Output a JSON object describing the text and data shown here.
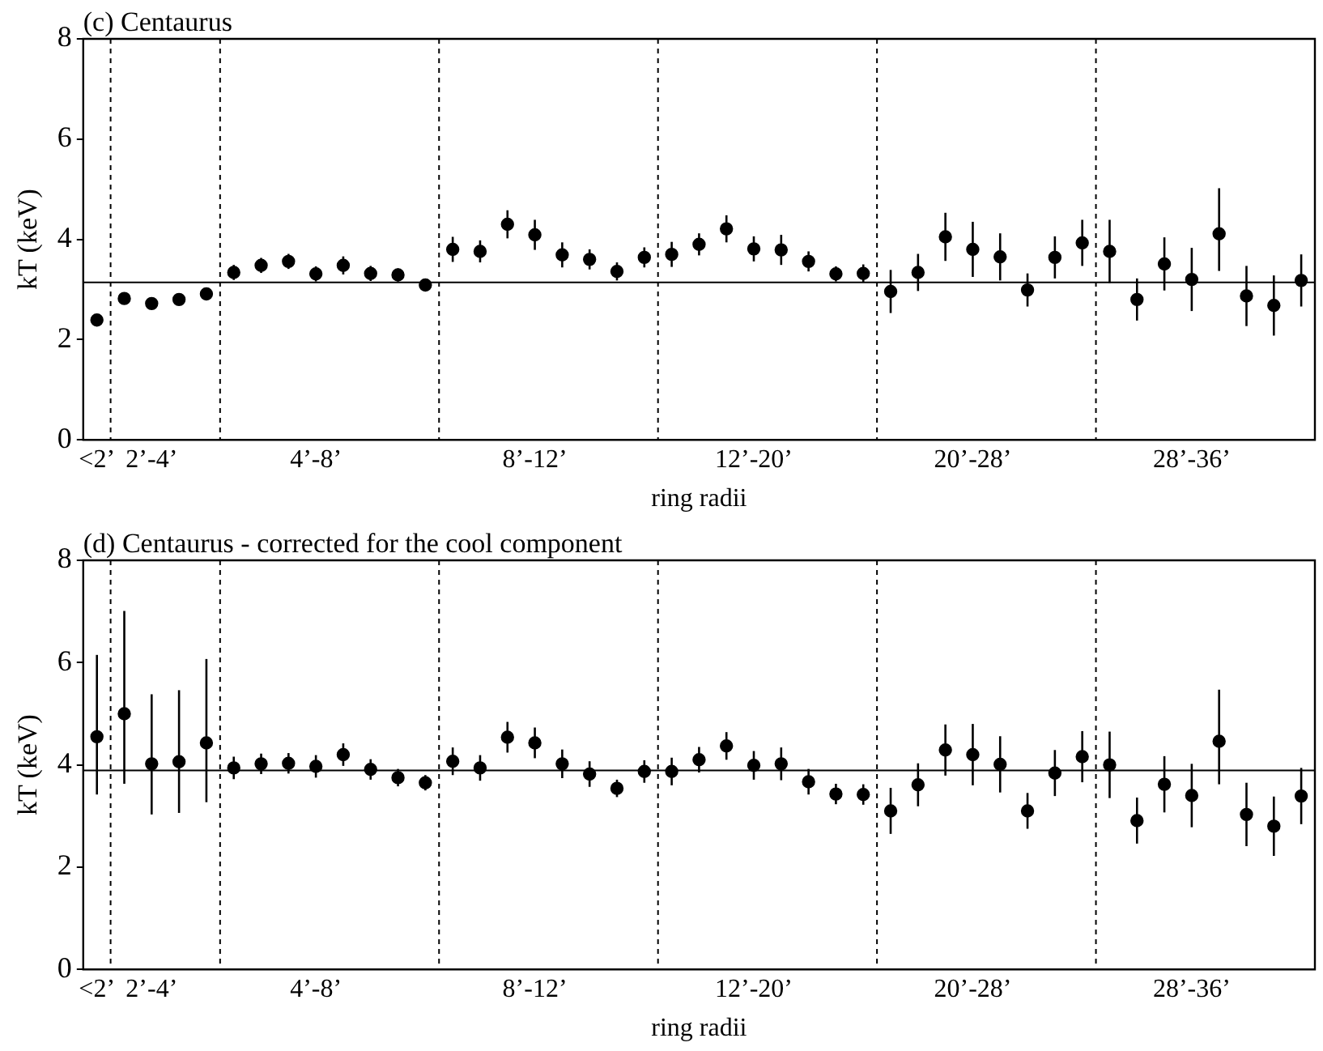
{
  "chart_data": [
    {
      "type": "scatter",
      "title": "(c) Centaurus",
      "xlabel": "ring radii",
      "ylabel": "kT (keV)",
      "categories": [
        "<2’",
        null,
        "2’-4’",
        null,
        null,
        null,
        null,
        null,
        "4’-8’",
        null,
        null,
        null,
        null,
        null,
        null,
        null,
        "8’-12’",
        null,
        null,
        null,
        null,
        null,
        null,
        null,
        "12’-20’",
        null,
        null,
        null,
        null,
        null,
        null,
        null,
        "20’-28’",
        null,
        null,
        null,
        null,
        null,
        null,
        null,
        "28’-36’",
        null,
        null,
        null,
        null
      ],
      "ylim": [
        0,
        8
      ],
      "yticks": [
        0,
        2,
        4,
        6,
        8
      ],
      "series": [
        {
          "color": "#000000",
          "values": [
            2.39,
            2.82,
            2.72,
            2.8,
            2.91,
            3.34,
            3.48,
            3.56,
            3.31,
            3.48,
            3.32,
            3.29,
            3.09,
            3.8,
            3.76,
            4.3,
            4.09,
            3.69,
            3.6,
            3.36,
            3.64,
            3.7,
            3.9,
            4.21,
            3.81,
            3.79,
            3.56,
            3.31,
            3.32,
            2.96,
            3.34,
            4.05,
            3.8,
            3.65,
            2.99,
            3.64,
            3.93,
            3.76,
            2.8,
            3.51,
            3.2,
            4.11,
            2.87,
            2.68,
            3.18
          ],
          "errors": [
            null,
            null,
            null,
            null,
            null,
            0.15,
            0.15,
            0.15,
            0.15,
            0.18,
            0.15,
            0.13,
            0.1,
            0.25,
            0.22,
            0.28,
            0.3,
            0.25,
            0.2,
            0.18,
            0.2,
            0.25,
            0.22,
            0.27,
            0.25,
            0.3,
            0.2,
            0.15,
            0.18,
            0.43,
            0.37,
            0.48,
            0.55,
            0.47,
            0.33,
            0.42,
            0.46,
            0.63,
            0.42,
            0.53,
            0.63,
            [
              3.37,
              5.02
            ],
            0.6,
            0.6,
            0.52
          ]
        }
      ],
      "ref_lines": [
        {
          "axis": "y",
          "value": 3.14,
          "color": "#000000",
          "line_style": "solid"
        }
      ],
      "marker": "circle",
      "grid": false,
      "legend": false
    },
    {
      "type": "scatter",
      "title": "(d) Centaurus - corrected for the cool component",
      "xlabel": "ring radii",
      "ylabel": "kT (keV)",
      "categories": [
        "<2’",
        null,
        "2’-4’",
        null,
        null,
        null,
        null,
        null,
        "4’-8’",
        null,
        null,
        null,
        null,
        null,
        null,
        null,
        "8’-12’",
        null,
        null,
        null,
        null,
        null,
        null,
        null,
        "12’-20’",
        null,
        null,
        null,
        null,
        null,
        null,
        null,
        "20’-28’",
        null,
        null,
        null,
        null,
        null,
        null,
        null,
        "28’-36’",
        null,
        null,
        null,
        null
      ],
      "ylim": [
        0,
        8
      ],
      "yticks": [
        0,
        2,
        4,
        6,
        8
      ],
      "series": [
        {
          "color": "#000000",
          "values": [
            4.55,
            5.0,
            4.02,
            4.06,
            4.43,
            3.94,
            4.02,
            4.03,
            3.97,
            4.2,
            3.91,
            3.75,
            3.65,
            4.07,
            3.94,
            4.54,
            4.43,
            4.02,
            3.82,
            3.54,
            3.87,
            3.87,
            4.1,
            4.37,
            3.99,
            4.02,
            3.67,
            3.43,
            3.42,
            3.1,
            3.61,
            4.29,
            4.2,
            4.01,
            3.1,
            3.84,
            4.16,
            4.0,
            2.91,
            3.62,
            3.4,
            4.46,
            3.03,
            2.8,
            3.39
          ],
          "errors": [
            [
              3.42,
              6.15
            ],
            [
              3.63,
              7.01
            ],
            [
              3.03,
              5.38
            ],
            [
              3.06,
              5.46
            ],
            [
              3.27,
              6.07
            ],
            0.22,
            0.2,
            0.2,
            0.22,
            0.22,
            0.2,
            0.17,
            0.15,
            0.27,
            0.25,
            0.3,
            0.3,
            0.28,
            0.25,
            0.17,
            0.22,
            0.27,
            0.25,
            0.27,
            0.28,
            0.32,
            0.25,
            0.2,
            0.2,
            0.45,
            0.42,
            0.5,
            0.6,
            0.55,
            0.35,
            0.45,
            0.5,
            0.65,
            0.45,
            0.55,
            0.62,
            [
              3.62,
              5.47
            ],
            0.62,
            0.58,
            0.55
          ]
        }
      ],
      "ref_lines": [
        {
          "axis": "y",
          "value": 3.89,
          "color": "#000000",
          "line_style": "solid"
        }
      ],
      "marker": "circle",
      "grid": false,
      "legend": false
    }
  ]
}
